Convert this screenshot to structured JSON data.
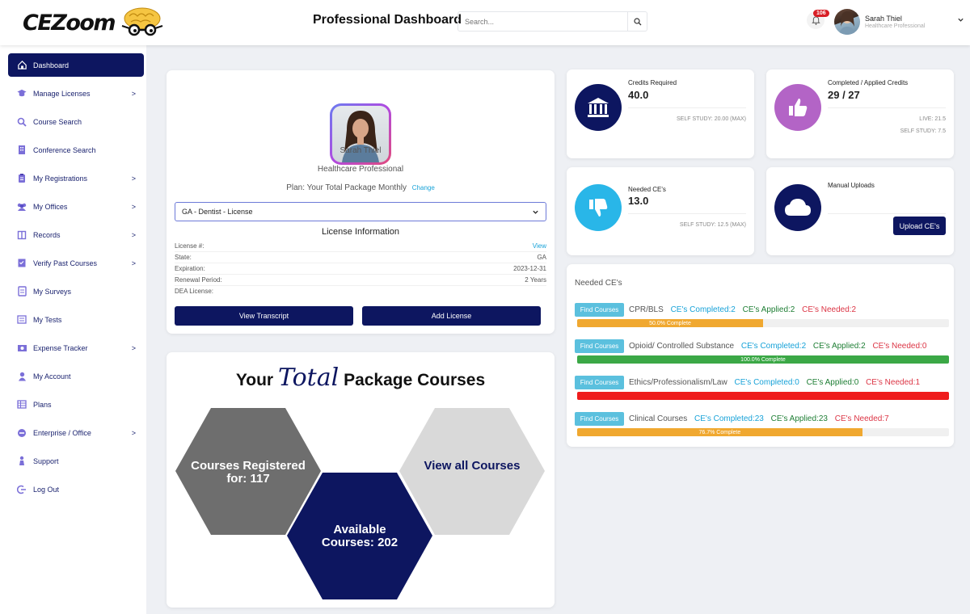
{
  "header": {
    "logo_text": "CEZoom",
    "title": "Professional Dashboard",
    "search_placeholder": "Search...",
    "notifications": "106",
    "user_name": "Sarah Thiel",
    "user_role": "Healthcare Professional"
  },
  "sidebar": {
    "items": [
      {
        "label": "Dashboard",
        "icon": "home-icon",
        "chevron": "",
        "active": true
      },
      {
        "label": "Manage Licenses",
        "icon": "graduation-cap-icon",
        "chevron": ">"
      },
      {
        "label": "Course Search",
        "icon": "search-icon",
        "chevron": ""
      },
      {
        "label": "Conference Search",
        "icon": "building-icon",
        "chevron": ""
      },
      {
        "label": "My Registrations",
        "icon": "clipboard-icon",
        "chevron": ">"
      },
      {
        "label": "My Offices",
        "icon": "users-icon",
        "chevron": ">"
      },
      {
        "label": "Records",
        "icon": "book-icon",
        "chevron": ">"
      },
      {
        "label": "Verify Past Courses",
        "icon": "checklist-icon",
        "chevron": ">"
      },
      {
        "label": "My Surveys",
        "icon": "survey-icon",
        "chevron": ""
      },
      {
        "label": "My Tests",
        "icon": "list-icon",
        "chevron": ""
      },
      {
        "label": "Expense Tracker",
        "icon": "money-icon",
        "chevron": ">"
      },
      {
        "label": "My Account",
        "icon": "user-icon",
        "chevron": ""
      },
      {
        "label": "Plans",
        "icon": "table-icon",
        "chevron": ""
      },
      {
        "label": "Enterprise / Office",
        "icon": "minus-circle-icon",
        "chevron": ">"
      },
      {
        "label": "Support",
        "icon": "support-icon",
        "chevron": ""
      },
      {
        "label": "Log Out",
        "icon": "logout-icon",
        "chevron": ""
      }
    ]
  },
  "profile": {
    "name": "Sarah Thiel",
    "role": "Healthcare Professional",
    "plan_text": "Plan: Your Total Package Monthly",
    "plan_change": "Change",
    "license_select": "GA - Dentist - License",
    "license_info_title": "License Information",
    "rows": [
      {
        "label": "License #:",
        "value": "View",
        "link": true
      },
      {
        "label": "State:",
        "value": "GA"
      },
      {
        "label": "Expiration:",
        "value": "2023-12-31"
      },
      {
        "label": "Renewal Period:",
        "value": "2 Years"
      },
      {
        "label": "DEA License:",
        "value": ""
      }
    ],
    "view_transcript": "View Transcript",
    "add_license": "Add License"
  },
  "package": {
    "title_before": "Your",
    "title_script": "Total",
    "title_after": "Package Courses",
    "registered": "Courses Registered for: 117",
    "available": "Available Courses: 202",
    "view_all": "View all Courses",
    "colors": {
      "registered": "#6e6e6e",
      "available": "#0d1660",
      "view_all": "#d9d9d9"
    }
  },
  "stats": {
    "credits_required": {
      "label": "Credits Required",
      "value": "40.0",
      "sub": "SELF STUDY: 20.00 (MAX)",
      "color": "#0d1660",
      "icon": "bank-icon"
    },
    "completed": {
      "label": "Completed / Applied Credits",
      "value": "29 / 27",
      "sub1": "LIVE: 21.5",
      "sub2": "SELF STUDY: 7.5",
      "color": "#b364c6",
      "icon": "thumbs-up-icon"
    },
    "needed": {
      "label": "Needed CE's",
      "value": "13.0",
      "sub": "SELF STUDY: 12.5 (MAX)",
      "color": "#29b6e8",
      "icon": "thumbs-down-icon"
    },
    "manual": {
      "label": "Manual Uploads",
      "button": "Upload CE's",
      "color": "#0d1660",
      "icon": "cloud-icon"
    }
  },
  "needed_ces": {
    "title": "Needed CE's",
    "find_label": "Find Courses",
    "rows": [
      {
        "name": "CPR/BLS",
        "completed": "CE's Completed:2",
        "applied": "CE's Applied:2",
        "needed": "CE's Needed:2",
        "progress": 50.0,
        "progress_label": "50.0% Complete",
        "color": "#f0a830"
      },
      {
        "name": "Opioid/ Controlled Substance",
        "completed": "CE's Completed:2",
        "applied": "CE's Applied:2",
        "needed": "CE's Needed:0",
        "progress": 100.0,
        "progress_label": "100.0% Complete",
        "color": "#3ba846"
      },
      {
        "name": "Ethics/Professionalism/Law",
        "completed": "CE's Completed:0",
        "applied": "CE's Applied:0",
        "needed": "CE's Needed:1",
        "progress": 100.0,
        "progress_label": "",
        "color": "#ef1c1c"
      },
      {
        "name": "Clinical Courses",
        "completed": "CE's Completed:23",
        "applied": "CE's Applied:23",
        "needed": "CE's Needed:7",
        "progress": 76.7,
        "progress_label": "76.7% Complete",
        "color": "#f0a830"
      }
    ]
  }
}
